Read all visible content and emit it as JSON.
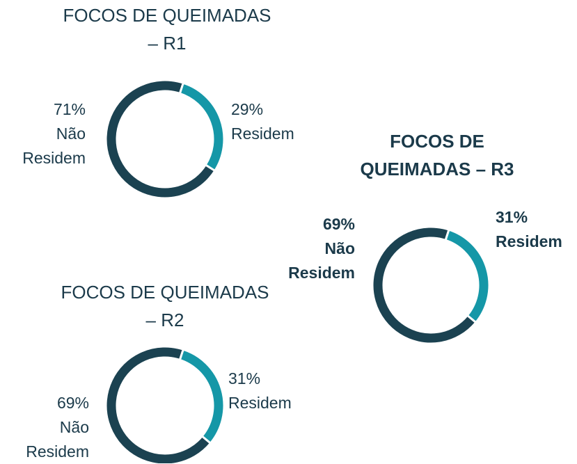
{
  "chart_data": [
    {
      "type": "pie",
      "donut": true,
      "title": "FOCOS DE QUEIMADAS – R1",
      "categories": [
        "Residem",
        "Não Residem"
      ],
      "values": [
        29,
        71
      ],
      "value_labels": [
        "29%",
        "71%"
      ],
      "colors": [
        "#1597a7",
        "#1b4251"
      ],
      "bold": false
    },
    {
      "type": "pie",
      "donut": true,
      "title": "FOCOS DE QUEIMADAS – R2",
      "categories": [
        "Residem",
        "Não Residem"
      ],
      "values": [
        31,
        69
      ],
      "value_labels": [
        "31%",
        "69%"
      ],
      "colors": [
        "#1597a7",
        "#1b4251"
      ],
      "bold": false
    },
    {
      "type": "pie",
      "donut": true,
      "title": "FOCOS DE QUEIMADAS – R3",
      "categories": [
        "Residem",
        "Não Residem"
      ],
      "values": [
        31,
        69
      ],
      "value_labels": [
        "31%",
        "69%"
      ],
      "colors": [
        "#1597a7",
        "#1b4251"
      ],
      "bold": true
    }
  ]
}
